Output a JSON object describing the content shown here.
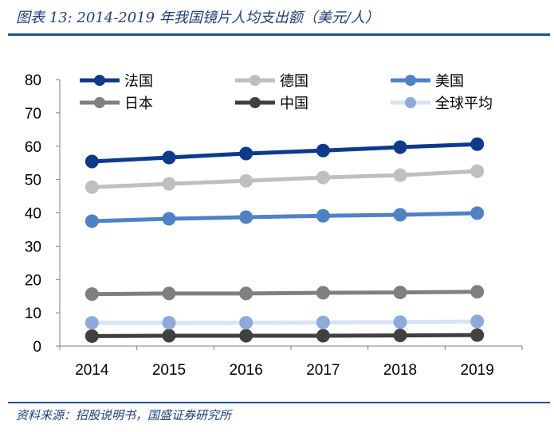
{
  "title": "图表 13:  2014-2019 年我国镜片人均支出额（美元/人）",
  "source": "资料来源：招股说明书，国盛证券研究所",
  "chart_data": {
    "type": "line",
    "title": "",
    "xlabel": "",
    "ylabel": "",
    "categories": [
      "2014",
      "2015",
      "2016",
      "2017",
      "2018",
      "2019"
    ],
    "ylim": [
      0,
      80
    ],
    "yticks": [
      0,
      10,
      20,
      30,
      40,
      50,
      60,
      70,
      80
    ],
    "grid": false,
    "legend": "top",
    "series": [
      {
        "name": "法国",
        "color": "#0d3a8c",
        "marker": "#0d3a8c",
        "values": [
          55.4,
          56.6,
          57.8,
          58.7,
          59.7,
          60.6
        ]
      },
      {
        "name": "德国",
        "color": "#bfbfbf",
        "marker": "#bfbfbf",
        "values": [
          47.7,
          48.7,
          49.6,
          50.6,
          51.3,
          52.5
        ]
      },
      {
        "name": "美国",
        "color": "#4f81c7",
        "marker": "#4f81c7",
        "values": [
          37.5,
          38.2,
          38.7,
          39.1,
          39.4,
          39.9
        ]
      },
      {
        "name": "日本",
        "color": "#7f7f7f",
        "marker": "#7f7f7f",
        "values": [
          15.6,
          15.8,
          15.8,
          16.0,
          16.1,
          16.3
        ]
      },
      {
        "name": "中国",
        "color": "#404040",
        "marker": "#404040",
        "values": [
          3.0,
          3.1,
          3.1,
          3.1,
          3.2,
          3.3
        ]
      },
      {
        "name": "全球平均",
        "color": "#dae3f3",
        "marker": "#8ea9db",
        "values": [
          7.0,
          7.0,
          7.0,
          7.1,
          7.2,
          7.4
        ]
      }
    ]
  }
}
